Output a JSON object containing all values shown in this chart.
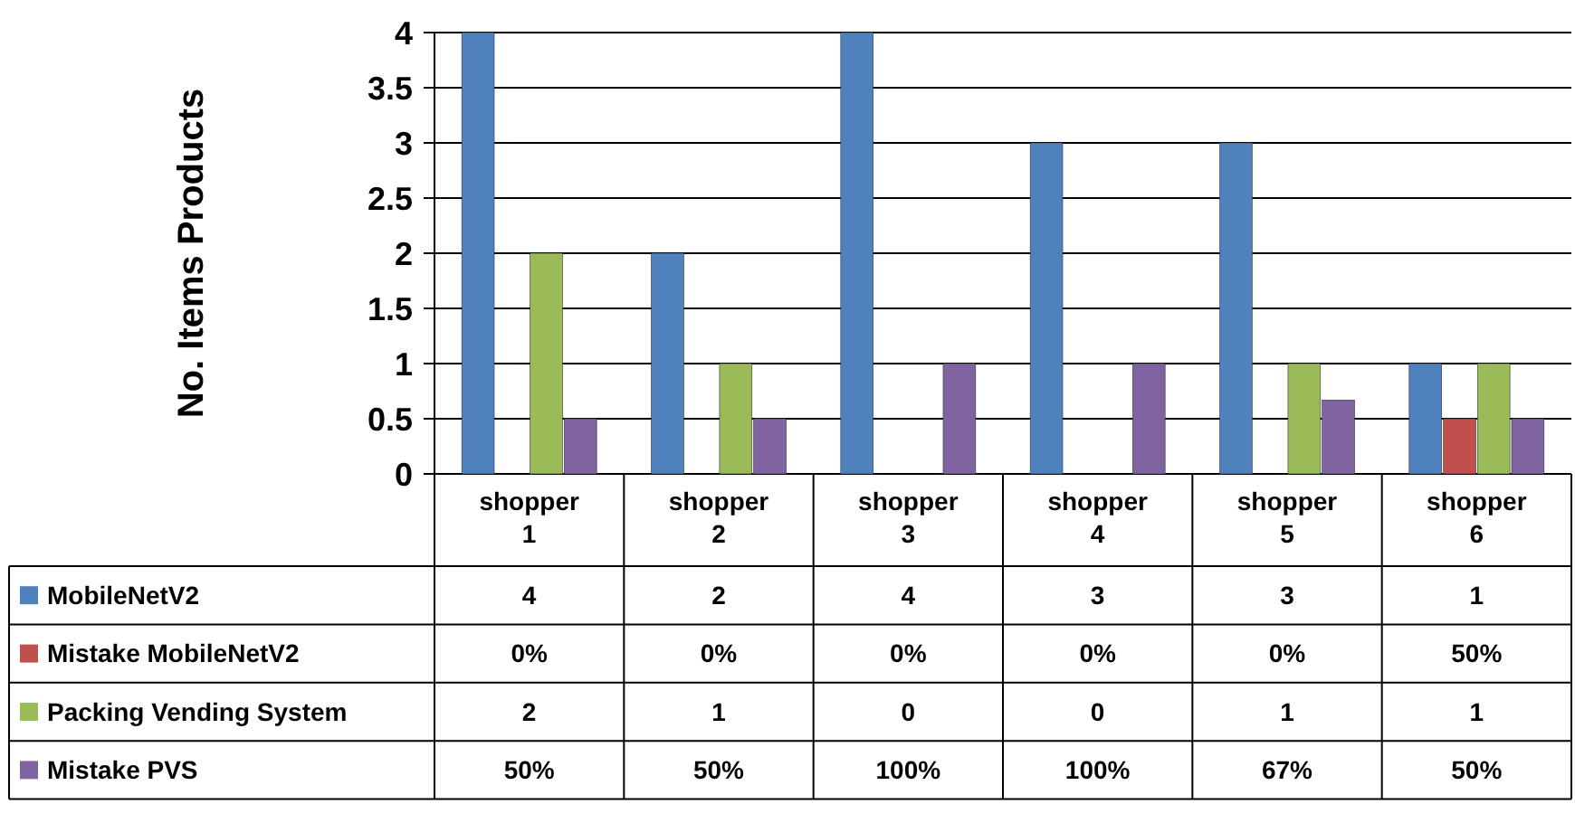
{
  "chart_data": {
    "type": "bar",
    "ylabel": "No. Items Products",
    "categories": [
      "shopper 1",
      "shopper 2",
      "shopper 3",
      "shopper 4",
      "shopper 5",
      "shopper 6"
    ],
    "series": [
      {
        "name": "MobileNetV2",
        "color": "#4f81bd",
        "values": [
          4,
          2,
          4,
          3,
          3,
          1
        ],
        "value_labels": [
          "4",
          "2",
          "4",
          "3",
          "3",
          "1"
        ]
      },
      {
        "name": "Mistake MobileNetV2",
        "color": "#c0504d",
        "values": [
          0,
          0,
          0,
          0,
          0,
          0.5
        ],
        "value_labels": [
          "0%",
          "0%",
          "0%",
          "0%",
          "0%",
          "50%"
        ]
      },
      {
        "name": "Packing Vending System",
        "color": "#9bbb59",
        "values": [
          2,
          1,
          0,
          0,
          1,
          1
        ],
        "value_labels": [
          "2",
          "1",
          "0",
          "0",
          "1",
          "1"
        ]
      },
      {
        "name": "Mistake PVS",
        "color": "#8064a2",
        "values": [
          0.5,
          0.5,
          1,
          1,
          0.67,
          0.5
        ],
        "value_labels": [
          "50%",
          "50%",
          "100%",
          "100%",
          "67%",
          "50%"
        ]
      }
    ],
    "ylim": [
      0,
      4
    ],
    "yticks": [
      0,
      0.5,
      1,
      1.5,
      2,
      2.5,
      3,
      3.5,
      4
    ],
    "grid": "y",
    "legend": "bottom"
  }
}
